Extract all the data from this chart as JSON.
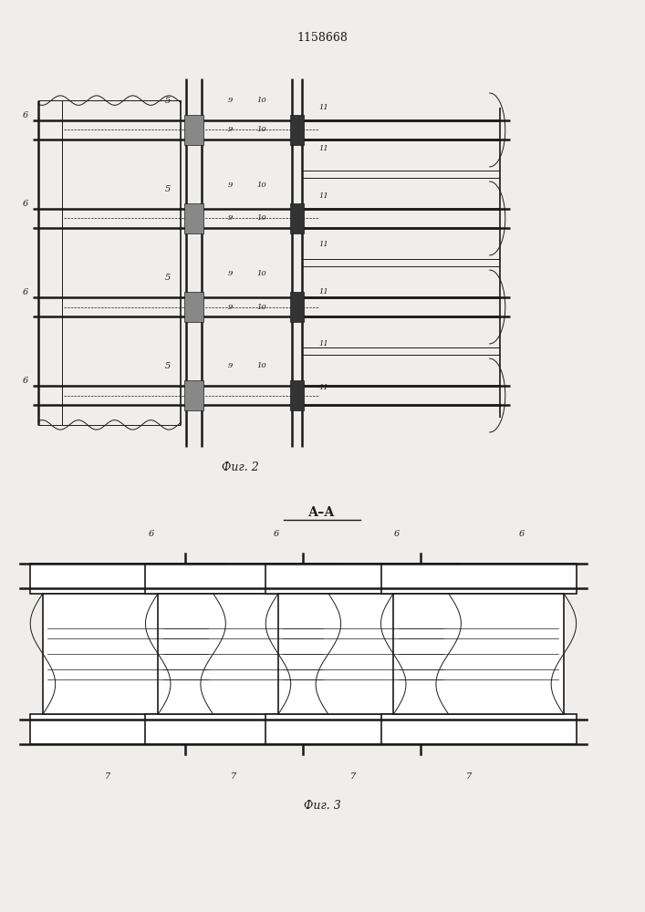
{
  "patent_number": "1158668",
  "fig2_caption": "Фиг. 2",
  "fig3_caption": "Фиг. 3",
  "section_label": "А–А",
  "bg_color": "#f0eeea",
  "line_color": "#1a1a1a"
}
